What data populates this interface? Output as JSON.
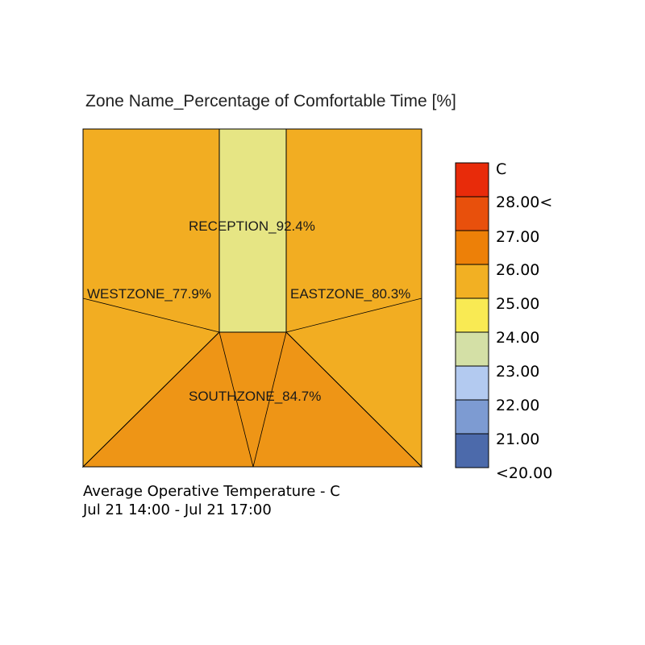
{
  "title": "Zone Name_Percentage of Comfortable Time [%]",
  "zones": [
    {
      "id": "reception",
      "label": "RECEPTION_92.4%",
      "color": "#e6e584"
    },
    {
      "id": "westzone",
      "label": "WESTZONE_77.9%",
      "color": "#f2ad22"
    },
    {
      "id": "eastzone",
      "label": "EASTZONE_80.3%",
      "color": "#f2ad22"
    },
    {
      "id": "southzone",
      "label": "SOUTHZONE_84.7%",
      "color": "#ee9516"
    }
  ],
  "legend": {
    "unit": "C",
    "items": [
      {
        "label": "28.00<",
        "color": "#e82b0a"
      },
      {
        "label": "27.00",
        "color": "#e8500c"
      },
      {
        "label": "26.00",
        "color": "#ed8008"
      },
      {
        "label": "25.00",
        "color": "#f2b023"
      },
      {
        "label": "24.00",
        "color": "#f9ea53"
      },
      {
        "label": "23.00",
        "color": "#d4e0a6"
      },
      {
        "label": "22.00",
        "color": "#b3caf0"
      },
      {
        "label": "21.00",
        "color": "#7d9bd2"
      },
      {
        "label": "<20.00",
        "color": "#4c6aab"
      }
    ]
  },
  "caption": {
    "line1": "Average Operative Temperature  - C",
    "line2": "Jul 21 14:00 - Jul 21 17:00"
  }
}
